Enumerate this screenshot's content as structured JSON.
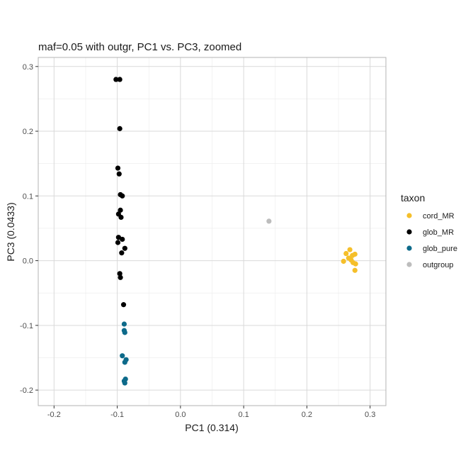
{
  "chart_data": {
    "type": "scatter",
    "title": "maf=0.05 with outgr, PC1 vs. PC3, zoomed",
    "xlabel": "PC1 (0.314)",
    "ylabel": "PC3 (0.0433)",
    "xlim": [
      -0.225,
      0.325
    ],
    "ylim": [
      -0.224,
      0.314
    ],
    "x_ticks": [
      -0.2,
      -0.1,
      0.0,
      0.1,
      0.2,
      0.3
    ],
    "x_tick_labels": [
      "-0.2",
      "-0.1",
      "0.0",
      "0.1",
      "0.2",
      "0.3"
    ],
    "y_ticks": [
      -0.2,
      -0.1,
      0.0,
      0.1,
      0.2,
      0.3
    ],
    "y_tick_labels": [
      "-0.2",
      "-0.1",
      "0.0",
      "0.1",
      "0.2",
      "0.3"
    ],
    "grid": true,
    "panel_border_color": "#b3b3b3",
    "grid_major_color": "#d9d9d9",
    "grid_minor_color": "#ebebeb",
    "legend": {
      "title": "taxon",
      "position": "right"
    },
    "series": [
      {
        "name": "cord_MR",
        "color": "#f5bf2a",
        "points": [
          [
            0.258,
            -0.001
          ],
          [
            0.262,
            0.011
          ],
          [
            0.268,
            0.017
          ],
          [
            0.272,
            0.008
          ],
          [
            0.276,
            0.01
          ],
          [
            0.266,
            0.004
          ],
          [
            0.273,
            -0.003
          ],
          [
            0.277,
            -0.005
          ],
          [
            0.276,
            -0.015
          ],
          [
            0.27,
            0.001
          ]
        ]
      },
      {
        "name": "glob_MR",
        "color": "#000000",
        "points": [
          [
            -0.102,
            0.28
          ],
          [
            -0.096,
            0.28
          ],
          [
            -0.096,
            0.204
          ],
          [
            -0.099,
            0.143
          ],
          [
            -0.097,
            0.134
          ],
          [
            -0.095,
            0.102
          ],
          [
            -0.092,
            0.1
          ],
          [
            -0.095,
            0.078
          ],
          [
            -0.098,
            0.072
          ],
          [
            -0.094,
            0.067
          ],
          [
            -0.098,
            0.036
          ],
          [
            -0.092,
            0.033
          ],
          [
            -0.099,
            0.028
          ],
          [
            -0.088,
            0.019
          ],
          [
            -0.093,
            0.012
          ],
          [
            -0.096,
            -0.02
          ],
          [
            -0.095,
            -0.026
          ],
          [
            -0.09,
            -0.068
          ]
        ]
      },
      {
        "name": "glob_pure",
        "color": "#0d6a8a",
        "points": [
          [
            -0.089,
            -0.098
          ],
          [
            -0.089,
            -0.108
          ],
          [
            -0.088,
            -0.111
          ],
          [
            -0.092,
            -0.147
          ],
          [
            -0.086,
            -0.153
          ],
          [
            -0.088,
            -0.157
          ],
          [
            -0.087,
            -0.183
          ],
          [
            -0.089,
            -0.186
          ],
          [
            -0.088,
            -0.189
          ]
        ]
      },
      {
        "name": "outgroup",
        "color": "#bdbdbd",
        "points": [
          [
            0.14,
            0.061
          ]
        ]
      }
    ]
  }
}
